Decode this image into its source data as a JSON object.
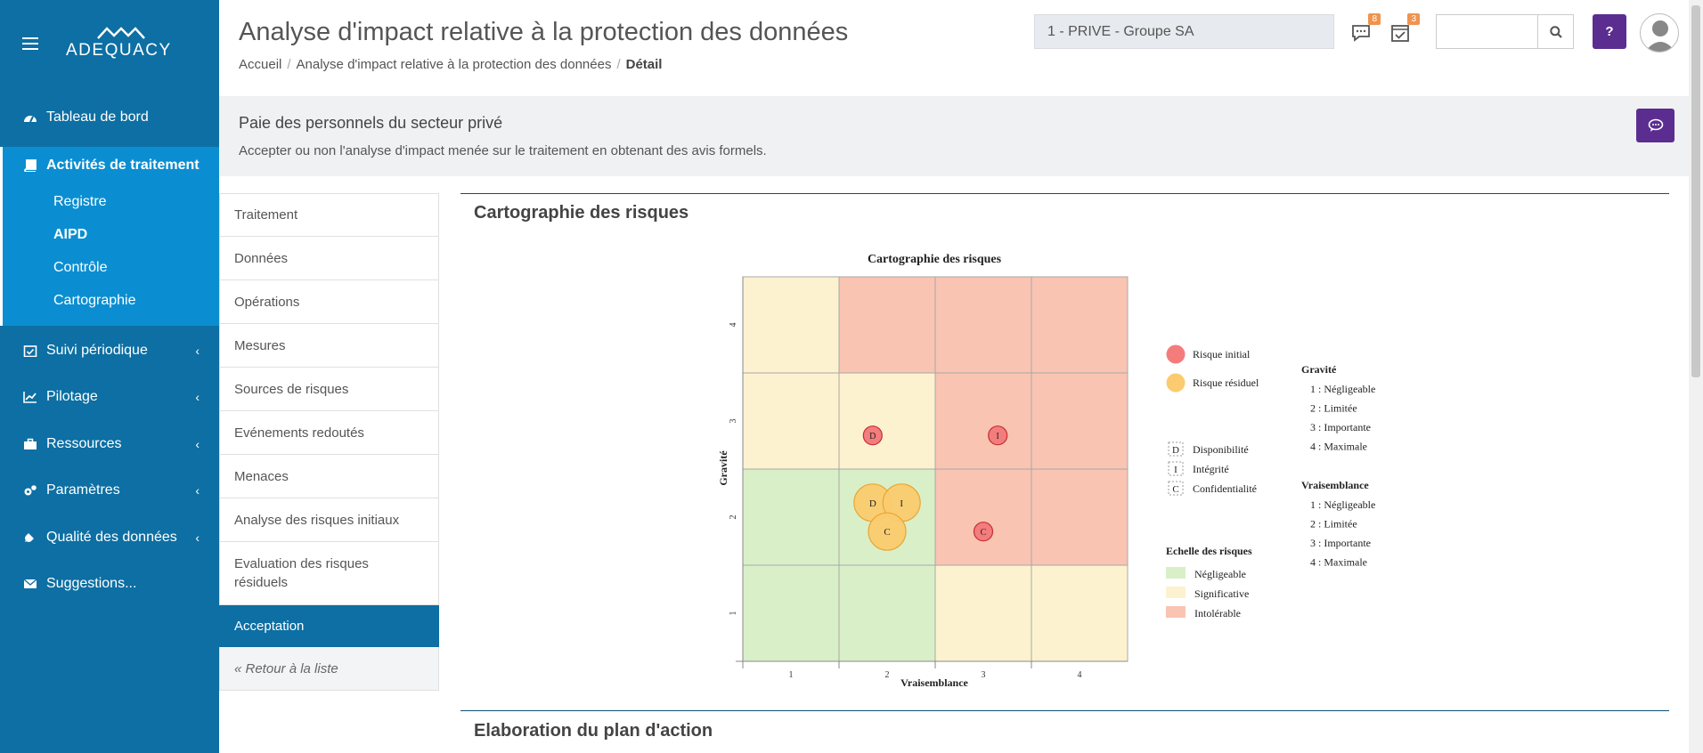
{
  "app": {
    "logo_text": "ADEQUACY"
  },
  "sidebar": {
    "items": [
      {
        "label": "Tableau de bord",
        "icon": "dashboard-icon"
      },
      {
        "label": "Activités de traitement",
        "icon": "book-icon"
      },
      {
        "label": "Suivi périodique",
        "icon": "calendar-check-icon"
      },
      {
        "label": "Pilotage",
        "icon": "line-chart-icon"
      },
      {
        "label": "Ressources",
        "icon": "briefcase-icon"
      },
      {
        "label": "Paramètres",
        "icon": "gears-icon"
      },
      {
        "label": "Qualité des données",
        "icon": "plug-icon"
      },
      {
        "label": "Suggestions...",
        "icon": "envelope-icon"
      }
    ],
    "subitems": [
      "Registre",
      "AIPD",
      "Contrôle",
      "Cartographie"
    ]
  },
  "header": {
    "title": "Analyse d'impact relative à la protection des données",
    "breadcrumb": [
      "Accueil",
      "Analyse d'impact relative à la protection des données",
      "Détail"
    ],
    "org_select": "1 - PRIVE - Groupe SA",
    "messages_count": "8",
    "tasks_count": "3",
    "help_label": "?"
  },
  "banner": {
    "title": "Paie des personnels du secteur privé",
    "description": "Accepter ou non l'analyse d'impact menée sur le traitement en obtenant des avis formels."
  },
  "tabs": [
    "Traitement",
    "Données",
    "Opérations",
    "Mesures",
    "Sources de risques",
    "Evénements redoutés",
    "Menaces",
    "Analyse des risques initiaux",
    "Evaluation des risques résiduels",
    "Acceptation"
  ],
  "back_link": "« Retour à la liste",
  "sections": {
    "map_title": "Cartographie des risques",
    "plan_title": "Elaboration du plan d'action"
  },
  "chart_data": {
    "type": "heatmap",
    "title": "Cartographie des risques",
    "xlabel": "Vraisemblance",
    "ylabel": "Gravité",
    "x_ticks": [
      "1",
      "2",
      "3",
      "4"
    ],
    "y_ticks": [
      "1",
      "2",
      "3",
      "4"
    ],
    "cell_levels": [
      [
        "Négligeable",
        "Négligeable",
        "Significative",
        "Significative"
      ],
      [
        "Négligeable",
        "Négligeable",
        "Intolérable",
        "Intolérable"
      ],
      [
        "Significative",
        "Significative",
        "Intolérable",
        "Intolérable"
      ],
      [
        "Significative",
        "Intolérable",
        "Intolérable",
        "Intolérable"
      ]
    ],
    "level_colors": {
      "Négligeable": "#d9efc8",
      "Significative": "#fdf2d0",
      "Intolérable": "#f9c4b2"
    },
    "series": [
      {
        "name": "Risque initial",
        "color": "#f47c7c",
        "points": [
          {
            "label": "D",
            "x": 2.35,
            "y": 3.35
          },
          {
            "label": "I",
            "x": 3.65,
            "y": 3.35
          },
          {
            "label": "C",
            "x": 3.5,
            "y": 2.35
          }
        ]
      },
      {
        "name": "Risque résiduel",
        "color": "#fbcb6f",
        "points": [
          {
            "label": "D",
            "x": 2.35,
            "y": 2.65
          },
          {
            "label": "I",
            "x": 2.65,
            "y": 2.65
          },
          {
            "label": "C",
            "x": 2.5,
            "y": 2.35
          }
        ]
      }
    ],
    "letter_legend": [
      {
        "letter": "D",
        "label": "Disponibilité"
      },
      {
        "letter": "I",
        "label": "Intégrité"
      },
      {
        "letter": "C",
        "label": "Confidentialité"
      }
    ],
    "scale_title": "Echelle des risques",
    "scale": [
      "Négligeable",
      "Significative",
      "Intolérable"
    ],
    "gravity_title": "Gravité",
    "gravity_scale": [
      "1 : Négligeable",
      "2 : Limitée",
      "3 : Importante",
      "4 : Maximale"
    ],
    "likelihood_title": "Vraisemblance",
    "likelihood_scale": [
      "1 : Négligeable",
      "2 : Limitée",
      "3 : Importante",
      "4 : Maximale"
    ]
  }
}
